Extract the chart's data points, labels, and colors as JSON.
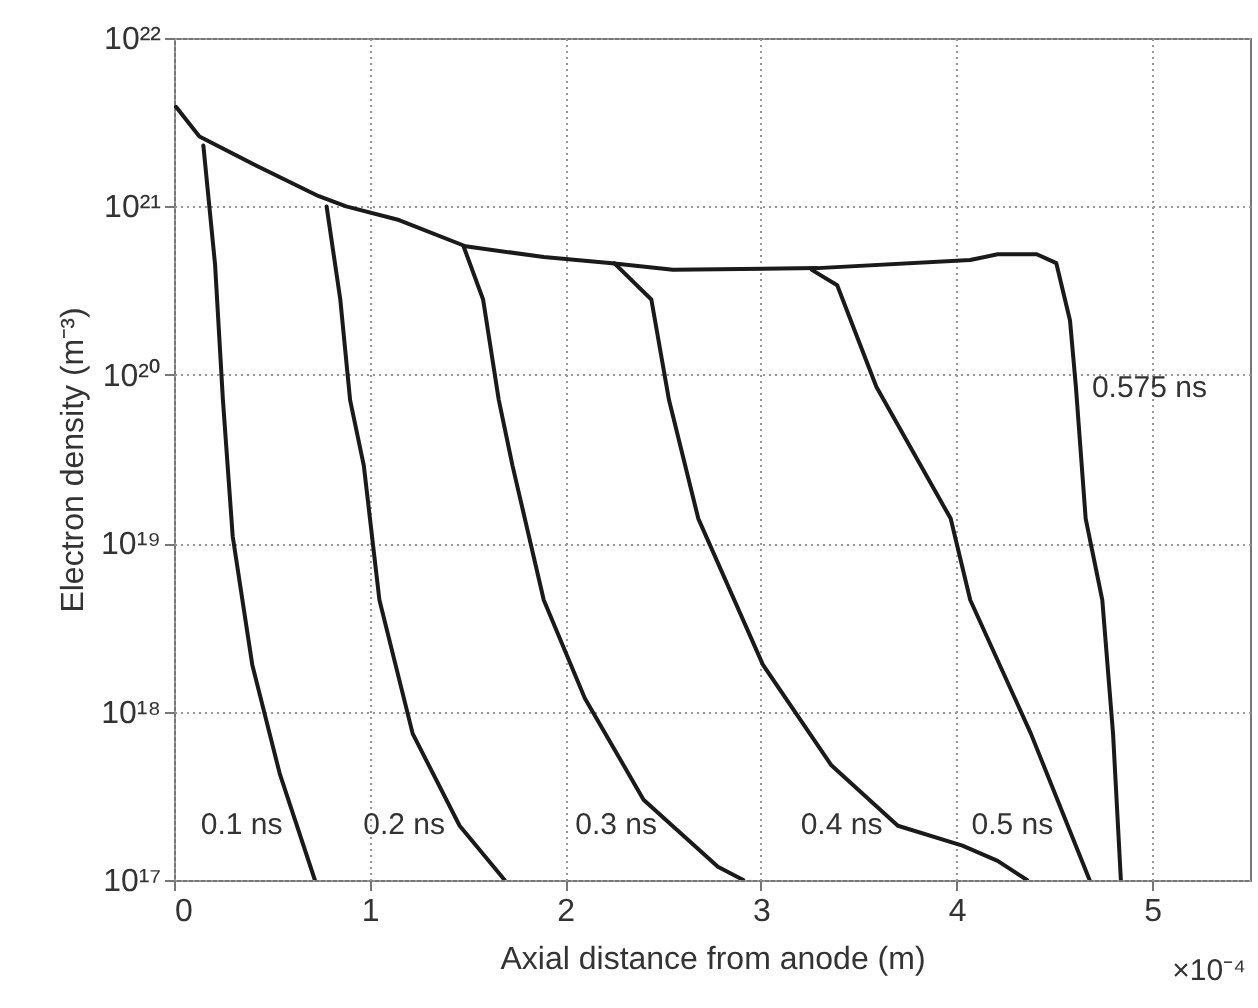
{
  "chart_data": {
    "type": "line",
    "xlabel": "Axial distance from anode (m)",
    "ylabel": "Electron density (m⁻³)",
    "xlim": [
      0,
      5.5
    ],
    "xticks": [
      0,
      1,
      2,
      3,
      4,
      5
    ],
    "ylim": [
      1e+17,
      1e+22
    ],
    "yticks": [
      {
        "value": 1e+17,
        "label": "10¹⁷"
      },
      {
        "value": 1e+18,
        "label": "10¹⁸"
      },
      {
        "value": 1e+19,
        "label": "10¹⁹"
      },
      {
        "value": 1e+20,
        "label": "10²⁰"
      },
      {
        "value": 1e+21,
        "label": "10²¹"
      },
      {
        "value": 1e+22,
        "label": "10²²"
      }
    ],
    "log": "y",
    "grid": true,
    "marker": "none",
    "line_style": "solid",
    "series": [
      {
        "name": "0.1 ns",
        "color": "#1a1a1a",
        "x": [
          0.15,
          0.21,
          0.25,
          0.3,
          0.4,
          0.54,
          0.72
        ],
        "values": [
          2.3e+21,
          4.5e+20,
          7.1e+19,
          1.1e+19,
          1.9e+18,
          4.3e+17,
          1e+17
        ]
      },
      {
        "name": "0.2 ns",
        "color": "#1a1a1a",
        "x": [
          0.78,
          0.85,
          0.9,
          0.97,
          1.05,
          1.22,
          1.46,
          1.69
        ],
        "values": [
          1e+21,
          2.8e+20,
          7.1e+19,
          2.9e+19,
          4.6e+18,
          7.4e+17,
          2.1e+17,
          1e+17
        ]
      },
      {
        "name": "0.3 ns",
        "color": "#1a1a1a",
        "x": [
          1.48,
          1.58,
          1.66,
          1.73,
          1.89,
          2.1,
          2.4,
          2.78,
          2.91
        ],
        "values": [
          5.8e+20,
          2.8e+20,
          7.1e+19,
          2.9e+19,
          4.6e+18,
          1.2e+18,
          3e+17,
          1.2e+17,
          1e+17
        ]
      },
      {
        "name": "0.4 ns",
        "color": "#1a1a1a",
        "x": [
          2.25,
          2.44,
          2.53,
          2.68,
          3.01,
          3.36,
          3.7,
          4.03,
          4.21,
          4.36
        ],
        "values": [
          4.6e+20,
          2.8e+20,
          7.1e+19,
          1.4e+19,
          1.9e+18,
          4.8e+17,
          2.1e+17,
          1.6e+17,
          1.3e+17,
          1e+17
        ]
      },
      {
        "name": "0.5 ns",
        "color": "#1a1a1a",
        "x": [
          3.26,
          3.39,
          3.59,
          3.97,
          4.07,
          4.38,
          4.68
        ],
        "values": [
          4.2e+20,
          3.4e+20,
          8.5e+19,
          1.4e+19,
          4.6e+18,
          7.4e+17,
          1e+17
        ]
      },
      {
        "name": "0.575 ns",
        "color": "#1a1a1a",
        "x": [
          0.01,
          0.13,
          0.44,
          0.74,
          0.88,
          1.15,
          1.49,
          1.89,
          2.24,
          2.55,
          3.29,
          4.07,
          4.21,
          4.41,
          4.51,
          4.58,
          4.61,
          4.66,
          4.745,
          4.8,
          4.84
        ],
        "values": [
          3.9e+21,
          2.6e+21,
          1.7e+21,
          1.15e+21,
          1e+21,
          8.3e+20,
          5.8e+20,
          5e+20,
          4.6e+20,
          4.2e+20,
          4.3e+20,
          4.8e+20,
          5.2e+20,
          5.2e+20,
          4.6e+20,
          2.1e+20,
          8.5e+19,
          1.4e+19,
          4.6e+18,
          7.4e+17,
          1e+17
        ]
      }
    ],
    "annotations": [
      "×10⁻⁴"
    ]
  }
}
